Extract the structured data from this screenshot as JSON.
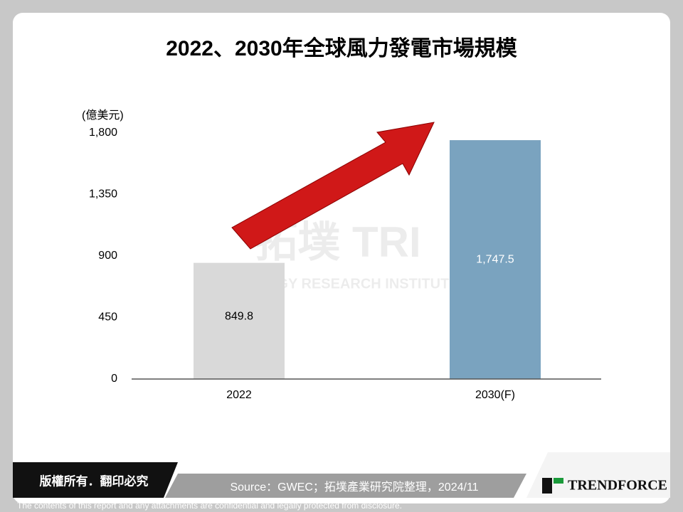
{
  "chart_data": {
    "type": "bar",
    "title": "2022、2030年全球風力發電市場規模",
    "y_axis_label": "(億美元)",
    "categories": [
      "2022",
      "2030(F)"
    ],
    "values": [
      849.8,
      1747.5
    ],
    "value_labels": [
      "849.8",
      "1,747.5"
    ],
    "colors": [
      "#d9d9d9",
      "#7aa3bf"
    ],
    "label_colors": [
      "#000000",
      "#ffffff"
    ],
    "ylim": [
      0,
      1800
    ],
    "yticks": [
      0,
      450,
      900,
      {
        "value": 1350,
        "label": "1,350"
      },
      {
        "value": 1800,
        "label": "1,800"
      }
    ],
    "watermark": {
      "logo": "拓墣 TRI",
      "name": "TOPOLOGY RESEARCH INSTITUTE"
    }
  },
  "footer": {
    "copyright": "版權所有．翻印必究",
    "source": "Source：GWEC；拓墣產業研究院整理，2024/11",
    "brand": "TRENDFORCE",
    "disclaimer": "The contents of this report and any attachments are confidential and legally protected from disclosure."
  }
}
